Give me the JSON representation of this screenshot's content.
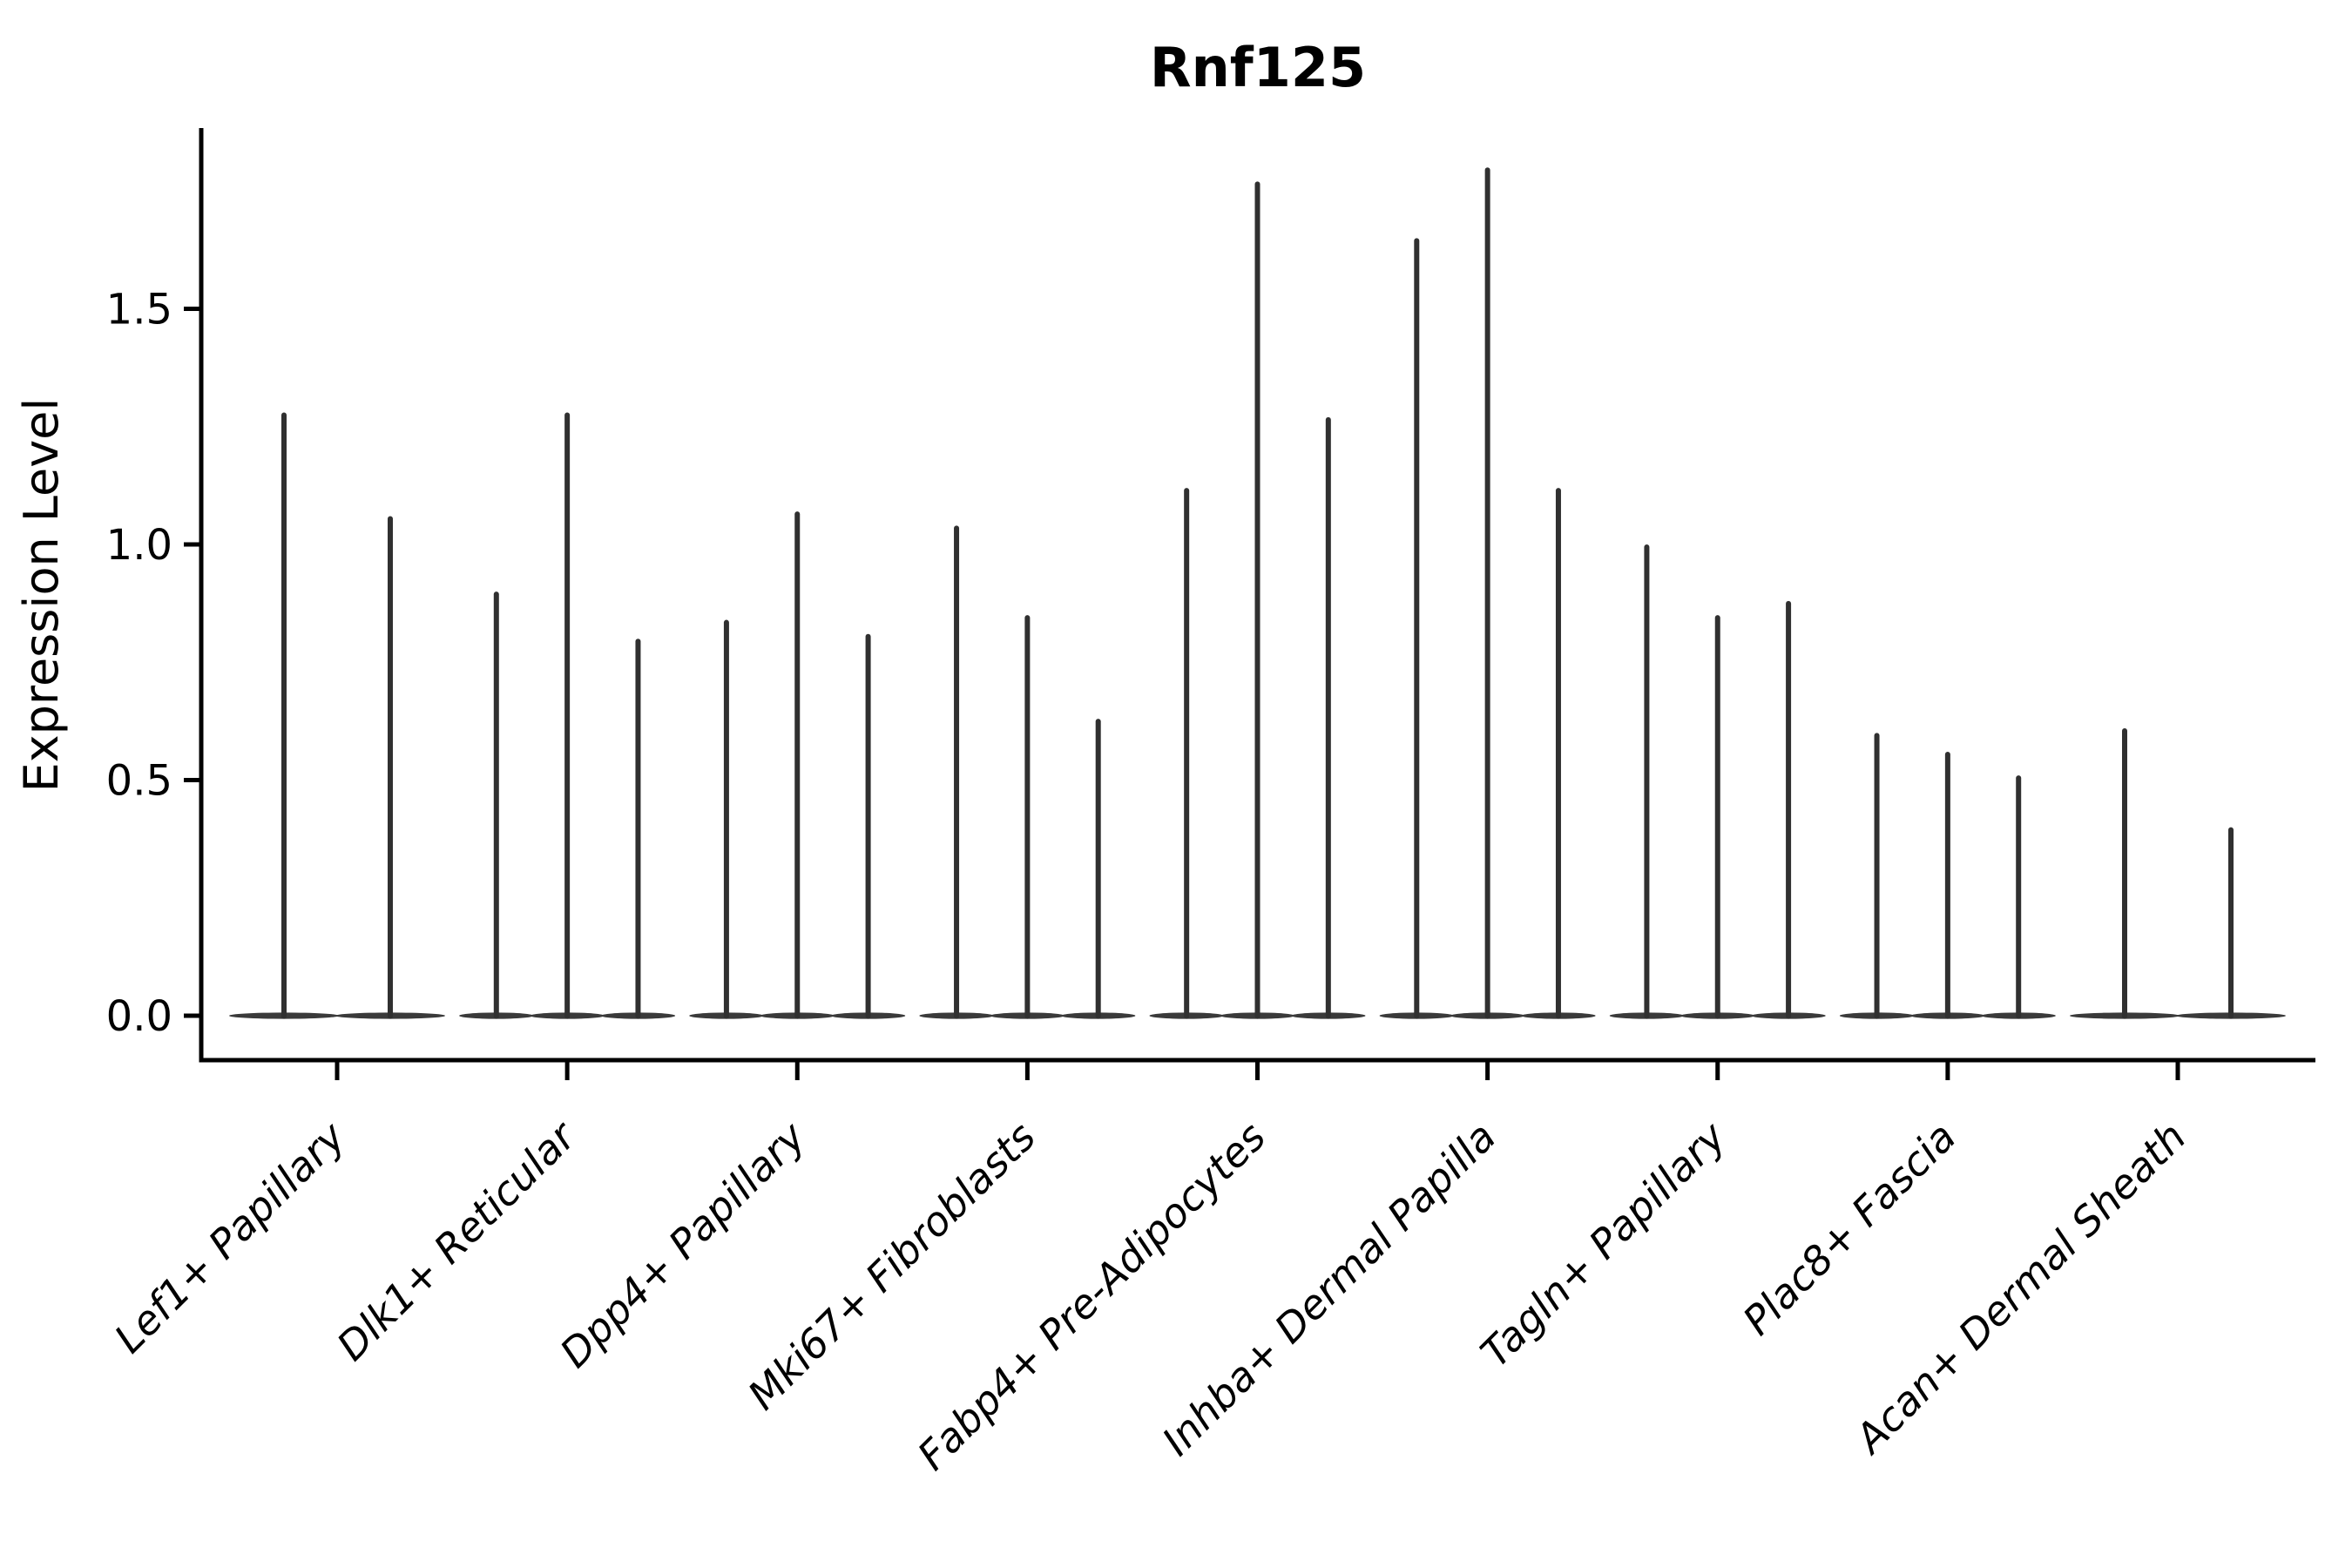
{
  "chart_data": {
    "type": "violin",
    "title": "Rnf125",
    "ylabel": "Expression Level",
    "xlabel": "",
    "yticks": [
      {
        "value": 0.0,
        "label": "0.0"
      },
      {
        "value": 0.5,
        "label": "0.5"
      },
      {
        "value": 1.0,
        "label": "1.0"
      },
      {
        "value": 1.5,
        "label": "1.5"
      }
    ],
    "ylim": [
      -0.09,
      1.88
    ],
    "grid": false,
    "legend": null,
    "x_tick_label_rotation_deg": 45,
    "x_tick_labels_italic": true,
    "groups": [
      {
        "label": "Lef1+ Papillary",
        "spikes": [
          1.28,
          1.06
        ]
      },
      {
        "label": "Dlk1+ Reticular",
        "spikes": [
          0.9,
          1.28,
          0.8
        ]
      },
      {
        "label": "Dpp4+ Papillary",
        "spikes": [
          0.84,
          1.07,
          0.81
        ]
      },
      {
        "label": "Mki67+ Fibroblasts",
        "spikes": [
          1.04,
          0.85,
          0.63
        ]
      },
      {
        "label": "Fabp4+ Pre-Adipocytes",
        "spikes": [
          1.12,
          1.77,
          1.27
        ]
      },
      {
        "label": "Inhba+ Dermal Papilla",
        "spikes": [
          1.65,
          1.8,
          1.12
        ]
      },
      {
        "label": "Tagln+ Papillary",
        "spikes": [
          1.0,
          0.85,
          0.88
        ]
      },
      {
        "label": "Plac8+ Fascia",
        "spikes": [
          0.6,
          0.56,
          0.51
        ]
      },
      {
        "label": "Acan+ Dermal Sheath",
        "spikes": [
          0.61,
          0.4
        ]
      }
    ],
    "colors": {
      "violin_spike": "#303030",
      "violin_base": "#3a3a3a",
      "axis": "#000000",
      "text": "#000000",
      "background": "#ffffff"
    }
  }
}
